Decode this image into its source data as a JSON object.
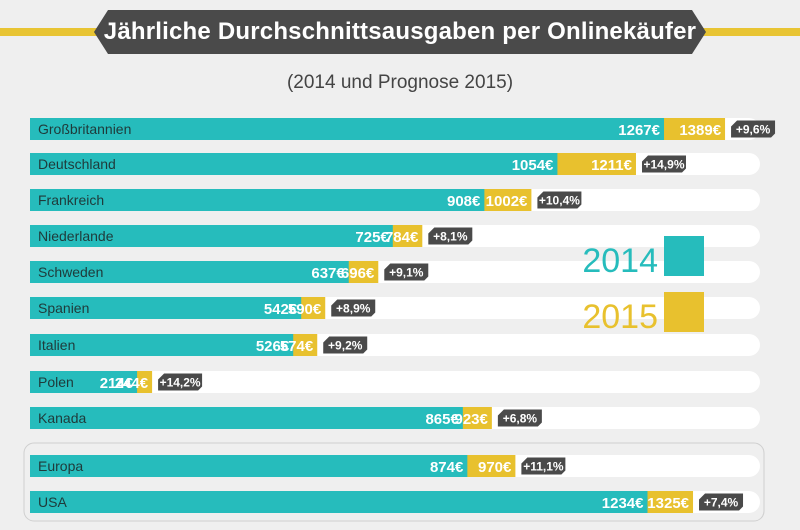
{
  "header": {
    "title": "Jährliche Durchschnittsausgaben per Onlinekäufer",
    "subtitle": "(2014 und Prognose 2015)"
  },
  "colors": {
    "teal": "#26bcbc",
    "yellow": "#e8c12e",
    "dark": "#4a4a4a",
    "track": "#ffffff"
  },
  "chart_data": {
    "type": "bar",
    "orientation": "horizontal",
    "currency": "€",
    "categories": [
      "Großbritannien",
      "Deutschland",
      "Frankreich",
      "Niederlande",
      "Schweden",
      "Spanien",
      "Italien",
      "Polen",
      "Kanada",
      "Europa",
      "USA"
    ],
    "series": [
      {
        "name": "2014",
        "color": "#26bcbc",
        "values": [
          1267,
          1054,
          908,
          725,
          637,
          542,
          526,
          214,
          865,
          874,
          1234
        ]
      },
      {
        "name": "2015",
        "color": "#e8c12e",
        "values": [
          1389,
          1211,
          1002,
          784,
          696,
          590,
          574,
          244,
          923,
          970,
          1325
        ]
      }
    ],
    "value_labels_2014": [
      "1267€",
      "1054€",
      "908€",
      "725€",
      "637€",
      "542€",
      "526€",
      "214€",
      "865€",
      "874€",
      "1234€"
    ],
    "value_labels_2015": [
      "1389€",
      "1211€",
      "1002€",
      "784€",
      "696€",
      "590€",
      "574€",
      "244€",
      "923€",
      "970€",
      "1325€"
    ],
    "growth_labels": [
      "+9,6%",
      "+14,9%",
      "+10,4%",
      "+8,1%",
      "+9,1%",
      "+8,9%",
      "+9,2%",
      "+14,2%",
      "+6,8%",
      "+11,1%",
      "+7,4%"
    ],
    "grouped_rows": [
      "Europa",
      "USA"
    ],
    "legend": [
      {
        "label": "2014",
        "color": "#26bcbc"
      },
      {
        "label": "2015",
        "color": "#e8c12e"
      }
    ],
    "legend_position": "right"
  }
}
